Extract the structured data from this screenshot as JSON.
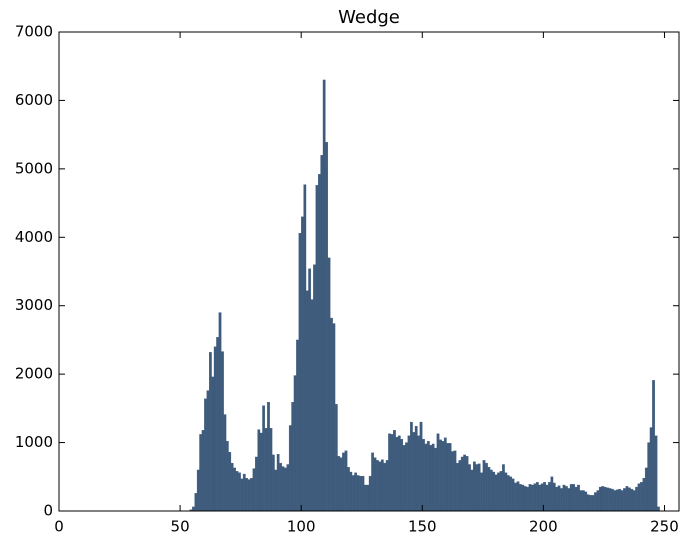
{
  "chart_data": {
    "type": "histogram",
    "title": "Wedge",
    "color": "#3e5b7c",
    "bins": [
      0,
      1,
      2,
      3,
      4,
      5,
      6,
      7,
      8,
      9,
      10,
      11,
      12,
      13,
      14,
      15,
      16,
      17,
      18,
      19,
      20,
      21,
      22,
      23,
      24,
      25,
      26,
      27,
      28,
      29,
      30,
      31,
      32,
      33,
      34,
      35,
      36,
      37,
      38,
      39,
      40,
      41,
      42,
      43,
      44,
      45,
      46,
      47,
      48,
      49,
      50,
      51,
      52,
      53,
      54,
      55,
      56,
      57,
      58,
      59,
      60,
      61,
      62,
      63,
      64,
      65,
      66,
      67,
      68,
      69,
      70,
      71,
      72,
      73,
      74,
      75,
      76,
      77,
      78,
      79,
      80,
      81,
      82,
      83,
      84,
      85,
      86,
      87,
      88,
      89,
      90,
      91,
      92,
      93,
      94,
      95,
      96,
      97,
      98,
      99,
      100,
      101,
      102,
      103,
      104,
      105,
      106,
      107,
      108,
      109,
      110,
      111,
      112,
      113,
      114,
      115,
      116,
      117,
      118,
      119,
      120,
      121,
      122,
      123,
      124,
      125,
      126,
      127,
      128,
      129,
      130,
      131,
      132,
      133,
      134,
      135,
      136,
      137,
      138,
      139,
      140,
      141,
      142,
      143,
      144,
      145,
      146,
      147,
      148,
      149,
      150,
      151,
      152,
      153,
      154,
      155,
      156,
      157,
      158,
      159,
      160,
      161,
      162,
      163,
      164,
      165,
      166,
      167,
      168,
      169,
      170,
      171,
      172,
      173,
      174,
      175,
      176,
      177,
      178,
      179,
      180,
      181,
      182,
      183,
      184,
      185,
      186,
      187,
      188,
      189,
      190,
      191,
      192,
      193,
      194,
      195,
      196,
      197,
      198,
      199,
      200,
      201,
      202,
      203,
      204,
      205,
      206,
      207,
      208,
      209,
      210,
      211,
      212,
      213,
      214,
      215,
      216,
      217,
      218,
      219,
      220,
      221,
      222,
      223,
      224,
      225,
      226,
      227,
      228,
      229,
      230,
      231,
      232,
      233,
      234,
      235,
      236,
      237,
      238,
      239,
      240,
      241,
      242,
      243,
      244,
      245,
      246,
      247,
      248,
      249,
      250,
      251,
      252,
      253,
      254,
      255,
      256
    ],
    "counts": [
      0,
      0,
      0,
      0,
      0,
      0,
      0,
      0,
      0,
      0,
      0,
      0,
      0,
      0,
      0,
      0,
      0,
      0,
      0,
      0,
      0,
      0,
      0,
      0,
      0,
      0,
      0,
      0,
      0,
      0,
      0,
      0,
      0,
      0,
      0,
      0,
      0,
      0,
      0,
      0,
      0,
      0,
      0,
      0,
      0,
      0,
      0,
      0,
      0,
      0,
      0,
      0,
      0,
      0,
      20,
      60,
      260,
      600,
      1120,
      1180,
      1640,
      1760,
      2320,
      1960,
      2400,
      2540,
      2900,
      2330,
      1410,
      1020,
      860,
      700,
      630,
      580,
      560,
      470,
      540,
      480,
      460,
      480,
      620,
      790,
      1190,
      1140,
      1540,
      1210,
      1590,
      1210,
      820,
      600,
      830,
      700,
      650,
      630,
      680,
      1250,
      1590,
      1980,
      2500,
      4060,
      4300,
      4770,
      3220,
      3540,
      3090,
      3600,
      4760,
      4920,
      5200,
      6300,
      5390,
      3700,
      2820,
      2740,
      1560,
      800,
      780,
      850,
      880,
      640,
      570,
      520,
      560,
      520,
      510,
      510,
      380,
      380,
      510,
      850,
      780,
      740,
      720,
      750,
      700,
      740,
      1130,
      1120,
      1180,
      1080,
      1100,
      1050,
      960,
      1000,
      1100,
      1300,
      1150,
      1240,
      1100,
      1300,
      1050,
      980,
      1020,
      960,
      980,
      920,
      1130,
      1040,
      1020,
      1070,
      990,
      990,
      870,
      880,
      700,
      740,
      790,
      820,
      800,
      680,
      600,
      720,
      680,
      690,
      560,
      740,
      700,
      640,
      600,
      570,
      530,
      560,
      580,
      680,
      560,
      520,
      500,
      470,
      410,
      430,
      390,
      380,
      360,
      350,
      390,
      380,
      400,
      420,
      380,
      400,
      420,
      380,
      420,
      500,
      410,
      350,
      370,
      330,
      380,
      360,
      330,
      390,
      390,
      350,
      380,
      300,
      300,
      280,
      240,
      230,
      230,
      270,
      300,
      350,
      360,
      350,
      340,
      330,
      320,
      300,
      310,
      320,
      300,
      330,
      360,
      340,
      320,
      300,
      350,
      400,
      420,
      480,
      630,
      1000,
      1220,
      1910,
      1100,
      60,
      0,
      0,
      0,
      0,
      0,
      0,
      0,
      0
    ],
    "xlim": [
      0,
      256
    ],
    "xticks": [
      0,
      50,
      100,
      150,
      200,
      250
    ],
    "ylim": [
      0,
      7000
    ],
    "yticks": [
      0,
      1000,
      2000,
      3000,
      4000,
      5000,
      6000,
      7000
    ]
  }
}
